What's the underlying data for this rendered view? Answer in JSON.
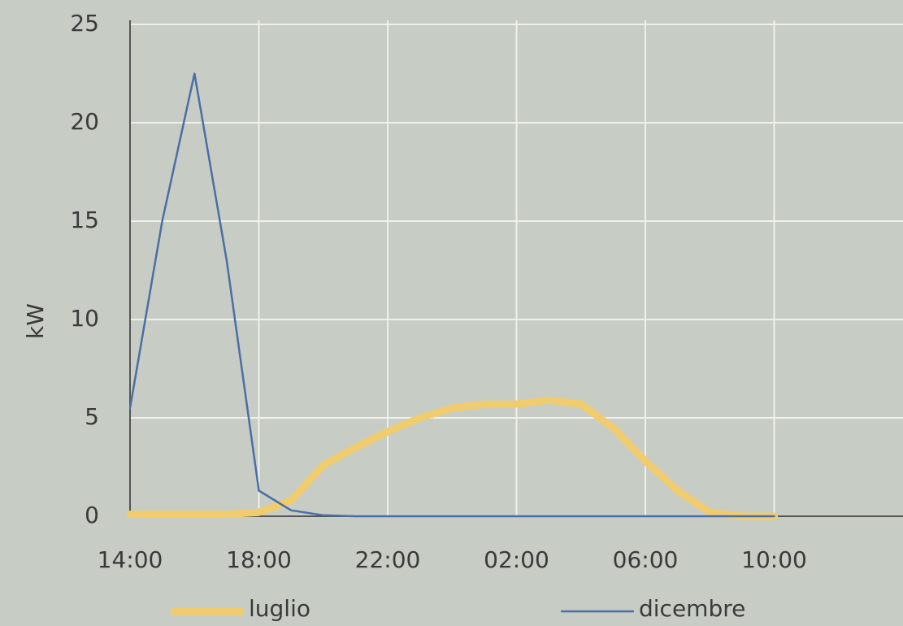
{
  "chart_data": {
    "type": "line",
    "ylabel": "kW",
    "categories": [
      "14:00",
      null,
      null,
      null,
      "18:00",
      null,
      null,
      null,
      "22:00",
      null,
      null,
      null,
      "02:00",
      null,
      null,
      null,
      "06:00",
      null,
      null,
      null,
      "10:00",
      null,
      null,
      null,
      null
    ],
    "series": [
      {
        "name": "luglio",
        "color": "#f0cc6e",
        "values": [
          0.1,
          0.1,
          0.1,
          0.1,
          0.2,
          0.8,
          2.6,
          3.5,
          4.3,
          5.0,
          5.5,
          5.7,
          5.7,
          5.9,
          5.7,
          4.5,
          2.8,
          1.3,
          0.2,
          0,
          0,
          null,
          null,
          null,
          null
        ]
      },
      {
        "name": "dicembre",
        "color": "#4a6ea6",
        "values": [
          5.5,
          15,
          22.5,
          13,
          1.3,
          0.3,
          0.05,
          0,
          0,
          0,
          0,
          0,
          0,
          0,
          0,
          0,
          0,
          0,
          0,
          0,
          0,
          null,
          null,
          null,
          null
        ]
      }
    ],
    "ylim": [
      0,
      25
    ],
    "yticks": [
      0,
      5,
      10,
      15,
      20,
      25
    ],
    "grid": true,
    "legend": "bottom"
  }
}
